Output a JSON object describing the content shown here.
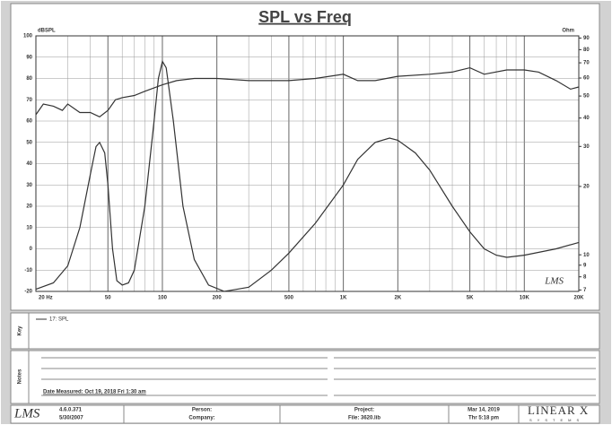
{
  "chart_data": {
    "type": "line",
    "title": "SPL vs Freq",
    "ylabel": "dBSPL",
    "y2label": "Ohm",
    "xscale": "log",
    "xlim": [
      20,
      20000
    ],
    "xticks": [
      {
        "value": 20,
        "label": "20 Hz"
      },
      50,
      100,
      200,
      500,
      {
        "value": 1000,
        "label": "1K"
      },
      {
        "value": 2000,
        "label": "2K"
      },
      {
        "value": 5000,
        "label": "5K"
      },
      {
        "value": 10000,
        "label": "10K"
      },
      {
        "value": 20000,
        "label": "20K"
      }
    ],
    "xminor": [
      30,
      40,
      60,
      70,
      80,
      90,
      300,
      400,
      600,
      700,
      800,
      900,
      3000,
      4000,
      6000,
      7000,
      8000,
      9000
    ],
    "ylim": [
      -20,
      100
    ],
    "yticks": [
      -20,
      -10,
      0,
      10,
      20,
      30,
      40,
      50,
      60,
      70,
      80,
      90,
      100
    ],
    "y2scale": "log",
    "y2lim": [
      6.9,
      92
    ],
    "y2ticks": [
      7,
      8,
      9,
      10,
      20,
      30,
      40,
      50,
      60,
      70,
      80,
      90
    ],
    "grid": true,
    "series": [
      {
        "name": "17: SPL",
        "color": "#333333",
        "x": [
          20,
          22,
          25,
          28,
          30,
          35,
          40,
          45,
          50,
          55,
          60,
          70,
          80,
          100,
          120,
          150,
          200,
          300,
          500,
          700,
          1000,
          1200,
          1500,
          2000,
          3000,
          4000,
          5000,
          6000,
          8000,
          10000,
          12000,
          15000,
          18000,
          20000
        ],
        "values": [
          63,
          68,
          67,
          65,
          68,
          64,
          64,
          62,
          65,
          70,
          71,
          72,
          74,
          77,
          79,
          80,
          80,
          79,
          79,
          80,
          82,
          79,
          79,
          81,
          82,
          83,
          85,
          82,
          84,
          84,
          83,
          79,
          75,
          76
        ]
      },
      {
        "color": "#333333",
        "x": [
          20,
          25,
          30,
          35,
          40,
          43,
          45,
          48,
          50,
          53,
          56,
          60,
          65,
          70,
          80,
          90,
          95,
          100,
          105,
          115,
          130,
          150,
          180,
          220,
          300,
          400,
          500,
          700,
          1000,
          1200,
          1500,
          1800,
          2000,
          2500,
          3000,
          4000,
          5000,
          6000,
          7000,
          8000,
          10000,
          15000,
          20000
        ],
        "values": [
          -19,
          -16,
          -8,
          10,
          35,
          48,
          50,
          45,
          30,
          0,
          -15,
          -17,
          -16,
          -10,
          20,
          60,
          80,
          88,
          85,
          60,
          20,
          -5,
          -17,
          -20,
          -18,
          -10,
          -2,
          12,
          30,
          42,
          50,
          52,
          51,
          45,
          37,
          20,
          8,
          0,
          -3,
          -4,
          -3,
          0,
          3
        ]
      }
    ],
    "watermark": "LMS"
  },
  "key": {
    "label": "Key",
    "entry": "17: SPL"
  },
  "notes": {
    "label": "Notes",
    "date": "Date Measured: Oct 19, 2018  Fri  1:30 am"
  },
  "footer": {
    "logo": "LMS",
    "version": "4.6.0.371",
    "build_date": "5/30/2007",
    "person": "Person:",
    "company": "Company:",
    "project": "Project:",
    "file": "File: 3620.lib",
    "date": "Mar 14, 2019",
    "time": "Thr  5:18 pm",
    "brand": "LINEAR X",
    "brand_sub": "SYSTEMS"
  }
}
